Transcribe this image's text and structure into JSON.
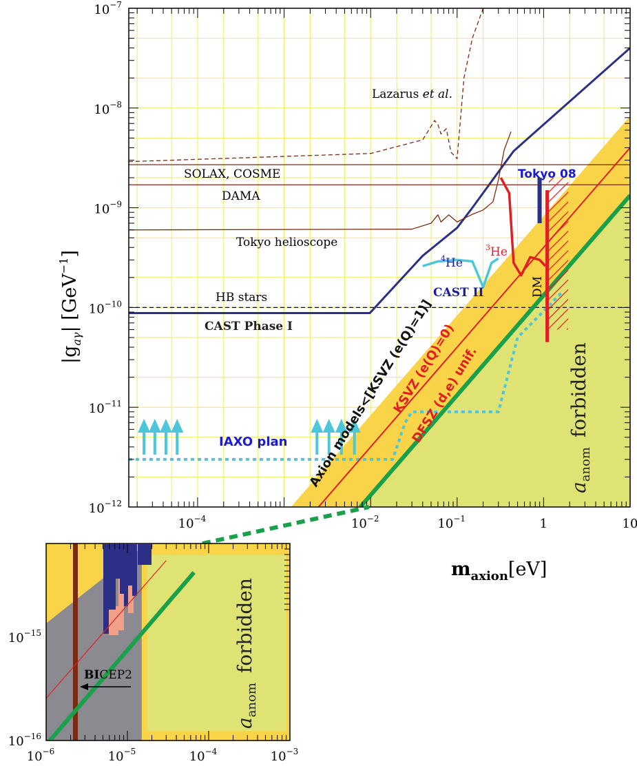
{
  "chart_data": [
    {
      "type": "line",
      "scale": "log-log",
      "xlabel_bold": "m",
      "xlabel_sub": "axion",
      "xlabel_unit": "[eV]",
      "ylabel_main": "|g",
      "ylabel_sub": "aγ",
      "ylabel_unit": "| [GeV",
      "ylabel_exp": "−1",
      "ylabel_close": "]",
      "xlim": [
        1.6e-05,
        10
      ],
      "ylim": [
        1e-12,
        1e-07
      ],
      "grid": true,
      "x_ticks": [
        {
          "v": 0.0001,
          "base": "10",
          "exp": "−4"
        },
        {
          "v": 0.01,
          "base": "10",
          "exp": "−2"
        },
        {
          "v": 0.1,
          "base": "10",
          "exp": "−1"
        },
        {
          "v": 1,
          "base": "1",
          "exp": ""
        },
        {
          "v": 10,
          "base": "10",
          "exp": ""
        }
      ],
      "y_ticks": [
        {
          "v": 1e-07,
          "base": "10",
          "exp": "−7"
        },
        {
          "v": 1e-08,
          "base": "10",
          "exp": "−8"
        },
        {
          "v": 1e-09,
          "base": "10",
          "exp": "−9"
        },
        {
          "v": 1e-10,
          "base": "10",
          "exp": "−10"
        },
        {
          "v": 1e-11,
          "base": "10",
          "exp": "−11"
        },
        {
          "v": 1e-12,
          "base": "10",
          "exp": "−12"
        }
      ],
      "series": [
        {
          "name": "CAST Phase I",
          "color": "#2c2f86",
          "points": [
            [
              1.6e-05,
              8.8e-11
            ],
            [
              0.0098,
              8.8e-11
            ],
            [
              0.04,
              3.3e-10
            ],
            [
              0.1,
              6.3e-10
            ],
            [
              0.15,
              1e-09
            ],
            [
              0.45,
              3.7e-09
            ],
            [
              10,
              4e-08
            ]
          ]
        },
        {
          "name": "HB stars",
          "color": "#000000",
          "dash": true,
          "points": [
            [
              1.6e-05,
              1e-10
            ],
            [
              10,
              1e-10
            ]
          ]
        },
        {
          "name": "SOLAX, COSME",
          "color": "#7a2a10",
          "points": [
            [
              1.6e-05,
              2.7e-09
            ],
            [
              10,
              2.7e-09
            ]
          ]
        },
        {
          "name": "DAMA",
          "color": "#7a2a10",
          "points": [
            [
              1.6e-05,
              1.7e-09
            ],
            [
              10,
              1.7e-09
            ]
          ]
        },
        {
          "name": "Tokyo helioscope",
          "color": "#7a2a10",
          "points": [
            [
              1.6e-05,
              6e-10
            ],
            [
              0.03,
              6.1e-10
            ],
            [
              0.05,
              7e-10
            ],
            [
              0.06,
              8.5e-10
            ],
            [
              0.065,
              7.2e-10
            ],
            [
              0.08,
              8.5e-10
            ],
            [
              0.1,
              7.2e-10
            ],
            [
              0.15,
              8.6e-10
            ],
            [
              0.2,
              9.5e-10
            ],
            [
              0.26,
              1.15e-09
            ],
            [
              0.3,
              1.9e-09
            ],
            [
              0.35,
              3.8e-09
            ],
            [
              0.42,
              5.8e-09
            ]
          ]
        },
        {
          "name": "Lazarus et al.",
          "color": "#7a2a10",
          "dash": true,
          "points": [
            [
              1.6e-05,
              2.9e-09
            ],
            [
              0.01,
              3.5e-09
            ],
            [
              0.04,
              4.8e-09
            ],
            [
              0.055,
              7.5e-09
            ],
            [
              0.06,
              6.8e-09
            ],
            [
              0.065,
              5.5e-09
            ],
            [
              0.075,
              6.2e-09
            ],
            [
              0.085,
              3.6e-09
            ],
            [
              0.1,
              3.1e-09
            ],
            [
              0.12,
              2e-08
            ],
            [
              0.15,
              5e-08
            ],
            [
              0.2,
              1e-07
            ]
          ]
        },
        {
          "name": "4He",
          "color": "#4cc6d8",
          "points": [
            [
              0.04,
              2.6e-10
            ],
            [
              0.06,
              2.9e-10
            ],
            [
              0.1,
              3e-10
            ],
            [
              0.15,
              2.9e-10
            ],
            [
              0.2,
              1.6e-10
            ],
            [
              0.25,
              2.8e-10
            ],
            [
              0.3,
              3.1e-10
            ]
          ]
        },
        {
          "name": "3He",
          "color": "#e02020",
          "points": [
            [
              0.32,
              2e-09
            ],
            [
              0.4,
              1.4e-09
            ],
            [
              0.45,
              2.8e-10
            ],
            [
              0.55,
              2.1e-10
            ],
            [
              0.7,
              3.2e-10
            ],
            [
              0.9,
              3e-10
            ],
            [
              1.05,
              2.6e-10
            ]
          ]
        },
        {
          "name": "IAXO plan",
          "color": "#4cc6d8",
          "dash": true,
          "points": [
            [
              1.6e-05,
              3e-12
            ],
            [
              0.018,
              3e-12
            ],
            [
              0.025,
              7e-12
            ],
            [
              0.03,
              9e-12
            ],
            [
              0.3,
              9e-12
            ],
            [
              0.5,
              5e-11
            ],
            [
              1.1,
              1e-10
            ],
            [
              1.6,
              1.4e-10
            ]
          ]
        },
        {
          "name": "DFSZ (d,e) unif.",
          "color": "#1aa04a",
          "points": [
            [
              0.0076,
              1e-12
            ],
            [
              10,
              1.33e-09
            ]
          ]
        },
        {
          "name": "KSVZ (e(Q)=0)",
          "color": "#e02020",
          "points": [
            [
              0.0025,
              1e-12
            ],
            [
              10,
              4e-09
            ]
          ]
        }
      ],
      "bands": [
        {
          "name": "Axion models<[KSVZ (e(Q)=1)]",
          "color": "#f9d449",
          "lower_at": [
            [
              0.0076,
              1e-12
            ],
            [
              10,
              1.33e-09
            ]
          ],
          "upper_at": [
            [
              0.0012,
              1e-12
            ],
            [
              10,
              8.3e-09
            ]
          ]
        }
      ],
      "regions": [
        {
          "name": "a_anom forbidden",
          "color": "#dfe373"
        },
        {
          "name": "Tokyo 08",
          "color": "#2c2f86",
          "x": [
            0.85,
            0.95
          ],
          "y": [
            7e-10,
            2e-09
          ]
        },
        {
          "name": "DM",
          "color": "#e02020",
          "x": [
            1.05,
            1.15
          ],
          "y": [
            4.5e-11,
            1.5e-09
          ]
        }
      ],
      "labels": {
        "lazarus_main": "Lazarus ",
        "lazarus_italic": "et al.",
        "solax": "SOLAX, COSME",
        "dama": "DAMA",
        "tokyo_helio": "Tokyo helioscope",
        "hb": "HB stars",
        "cast1": "CAST Phase I",
        "cast2": "CAST II",
        "he4_sup": "4",
        "he4": "He",
        "he3_sup": "3",
        "he3": "He",
        "tokyo08": "Tokyo 08",
        "dm": "DM",
        "iaxo": "IAXO plan",
        "axion_models": "Axion models<[KSVZ (e(Q)=1)]",
        "ksvz": "KSVZ (e(Q)=0)",
        "dfsz": "DFSZ (d,e) unif.",
        "forbidden": "forbidden",
        "anom_a": "a",
        "anom_sub": "anom"
      }
    },
    {
      "type": "line",
      "scale": "log-log",
      "xlim": [
        1e-06,
        0.001
      ],
      "ylim": [
        1e-16,
        1e-14
      ],
      "x_ticks": [
        {
          "v": 1e-06,
          "base": "10",
          "exp": "−6"
        },
        {
          "v": 1e-05,
          "base": "10",
          "exp": "−5"
        },
        {
          "v": 0.0001,
          "base": "10",
          "exp": "−4"
        },
        {
          "v": 0.001,
          "base": "10",
          "exp": "−3"
        }
      ],
      "y_ticks": [
        {
          "v": 1e-15,
          "base": "10",
          "exp": "−15"
        },
        {
          "v": 1e-16,
          "base": "10",
          "exp": "−16"
        }
      ],
      "series": [
        {
          "name": "DFSZ (d,e) unif.",
          "color": "#1aa04a",
          "points": [
            [
              1e-06,
              9e-17
            ],
            [
              6.6e-05,
              6e-15
            ]
          ]
        },
        {
          "name": "KSVZ (e(Q)=0)",
          "color": "#e02020",
          "points": [
            [
              1e-06,
              2.8e-16
            ],
            [
              3e-05,
              8e-15
            ]
          ]
        }
      ],
      "regions": [
        {
          "name": "BICEP2",
          "color": "#8a8a90",
          "x": [
            1e-06,
            1.5e-05
          ]
        },
        {
          "name": "a_anom forbidden",
          "color": "#dfe373"
        }
      ],
      "labels": {
        "bicep_bold": "BI",
        "bicep_rest": "CEP2",
        "forbidden": "forbidden",
        "anom_a": "a",
        "anom_sub": "anom"
      }
    }
  ]
}
